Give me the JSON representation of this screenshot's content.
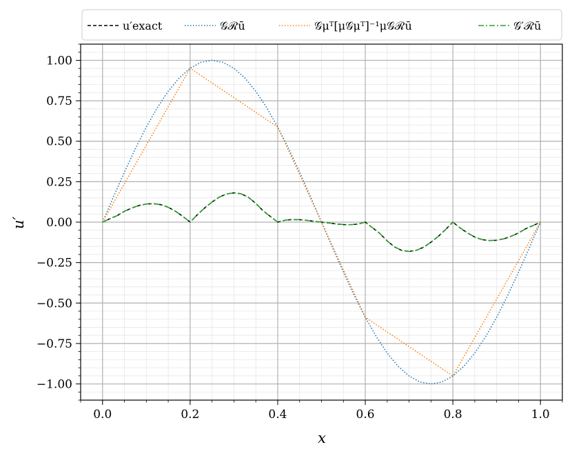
{
  "chart_data": {
    "type": "line",
    "xlabel": "x",
    "ylabel": "u′",
    "xlim": [
      -0.05,
      1.05
    ],
    "ylim": [
      -1.1,
      1.1
    ],
    "xticks": [
      0.0,
      0.2,
      0.4,
      0.6,
      0.8,
      1.0
    ],
    "xtick_labels": [
      "0.0",
      "0.2",
      "0.4",
      "0.6",
      "0.8",
      "1.0"
    ],
    "yticks": [
      1.0,
      0.75,
      0.5,
      0.25,
      0.0,
      -0.25,
      -0.5,
      -0.75,
      -1.0
    ],
    "ytick_labels": [
      "1.00",
      "0.75",
      "0.50",
      "0.25",
      "0.00",
      "−0.25",
      "−0.50",
      "−0.75",
      "−1.00"
    ],
    "grid": true,
    "legend_position": "top",
    "series": [
      {
        "name": "u′exact",
        "color": "#000000",
        "style": "dashed",
        "x": [
          0,
          0.0167,
          0.0333,
          0.05,
          0.0667,
          0.0833,
          0.1,
          0.1167,
          0.1333,
          0.15,
          0.1667,
          0.1833,
          0.2,
          0.2167,
          0.2333,
          0.25,
          0.2667,
          0.2833,
          0.3,
          0.3167,
          0.3333,
          0.35,
          0.3667,
          0.3833,
          0.4,
          0.4167,
          0.4333,
          0.45,
          0.4667,
          0.4833,
          0.5,
          0.5167,
          0.5333,
          0.55,
          0.5667,
          0.5833,
          0.6,
          0.6167,
          0.6333,
          0.65,
          0.6667,
          0.6833,
          0.7,
          0.7167,
          0.7333,
          0.75,
          0.7667,
          0.7833,
          0.8,
          0.8167,
          0.8333,
          0.85,
          0.8667,
          0.8833,
          0.9,
          0.9167,
          0.9333,
          0.95,
          0.9667,
          0.9833,
          1.0
        ],
        "y": [
          0,
          0.021,
          0.04,
          0.067,
          0.087,
          0.103,
          0.112,
          0.114,
          0.108,
          0.092,
          0.067,
          0.036,
          0,
          0.046,
          0.088,
          0.124,
          0.155,
          0.174,
          0.181,
          0.175,
          0.153,
          0.116,
          0.07,
          0.035,
          0,
          0.012,
          0.016,
          0.015,
          0.011,
          0.005,
          0,
          -0.005,
          -0.011,
          -0.015,
          -0.016,
          -0.012,
          0,
          -0.035,
          -0.07,
          -0.116,
          -0.153,
          -0.175,
          -0.181,
          -0.174,
          -0.155,
          -0.124,
          -0.088,
          -0.046,
          0,
          -0.036,
          -0.067,
          -0.092,
          -0.108,
          -0.114,
          -0.112,
          -0.103,
          -0.087,
          -0.067,
          -0.04,
          -0.021,
          0
        ]
      },
      {
        "name": "𝒢ℛū",
        "color": "#1f77b4",
        "style": "dotted",
        "x": [
          0,
          0.025,
          0.05,
          0.075,
          0.1,
          0.125,
          0.15,
          0.175,
          0.2,
          0.225,
          0.25,
          0.275,
          0.3,
          0.325,
          0.35,
          0.375,
          0.4,
          0.425,
          0.45,
          0.475,
          0.5,
          0.525,
          0.55,
          0.575,
          0.6,
          0.625,
          0.65,
          0.675,
          0.7,
          0.725,
          0.75,
          0.775,
          0.8,
          0.825,
          0.85,
          0.875,
          0.9,
          0.925,
          0.95,
          0.975,
          1.0
        ],
        "y": [
          0,
          0.156,
          0.309,
          0.454,
          0.588,
          0.707,
          0.809,
          0.891,
          0.951,
          0.988,
          1.0,
          0.988,
          0.951,
          0.891,
          0.809,
          0.707,
          0.588,
          0.454,
          0.309,
          0.156,
          0,
          -0.156,
          -0.309,
          -0.454,
          -0.588,
          -0.707,
          -0.809,
          -0.891,
          -0.951,
          -0.988,
          -1.0,
          -0.988,
          -0.951,
          -0.891,
          -0.809,
          -0.707,
          -0.588,
          -0.454,
          -0.309,
          -0.156,
          0
        ]
      },
      {
        "name": "𝒢μᵀ[μ𝒢μᵀ]⁻¹μ𝒢ℛū",
        "color": "#ff7f0e",
        "style": "dotted",
        "x": [
          0,
          0.2,
          0.4,
          0.6,
          0.8,
          1.0
        ],
        "y": [
          0,
          0.951,
          0.588,
          -0.588,
          -0.951,
          0
        ]
      },
      {
        "name": "𝒢′ℛū",
        "color": "#2ca02c",
        "style": "dashdot",
        "x": [
          0,
          0.0167,
          0.0333,
          0.05,
          0.0667,
          0.0833,
          0.1,
          0.1167,
          0.1333,
          0.15,
          0.1667,
          0.1833,
          0.2,
          0.2167,
          0.2333,
          0.25,
          0.2667,
          0.2833,
          0.3,
          0.3167,
          0.3333,
          0.35,
          0.3667,
          0.3833,
          0.4,
          0.4167,
          0.4333,
          0.45,
          0.4667,
          0.4833,
          0.5,
          0.5167,
          0.5333,
          0.55,
          0.5667,
          0.5833,
          0.6,
          0.6167,
          0.6333,
          0.65,
          0.6667,
          0.6833,
          0.7,
          0.7167,
          0.7333,
          0.75,
          0.7667,
          0.7833,
          0.8,
          0.8167,
          0.8333,
          0.85,
          0.8667,
          0.8833,
          0.9,
          0.9167,
          0.9333,
          0.95,
          0.9667,
          0.9833,
          1.0
        ],
        "y": [
          0,
          0.021,
          0.04,
          0.067,
          0.087,
          0.103,
          0.112,
          0.114,
          0.108,
          0.092,
          0.067,
          0.036,
          0,
          0.046,
          0.088,
          0.124,
          0.155,
          0.174,
          0.181,
          0.175,
          0.153,
          0.116,
          0.07,
          0.035,
          0,
          0.012,
          0.016,
          0.015,
          0.011,
          0.005,
          0,
          -0.005,
          -0.011,
          -0.015,
          -0.016,
          -0.012,
          0,
          -0.035,
          -0.07,
          -0.116,
          -0.153,
          -0.175,
          -0.181,
          -0.174,
          -0.155,
          -0.124,
          -0.088,
          -0.046,
          0,
          -0.036,
          -0.067,
          -0.092,
          -0.108,
          -0.114,
          -0.112,
          -0.103,
          -0.087,
          -0.067,
          -0.04,
          -0.021,
          0
        ]
      }
    ]
  }
}
